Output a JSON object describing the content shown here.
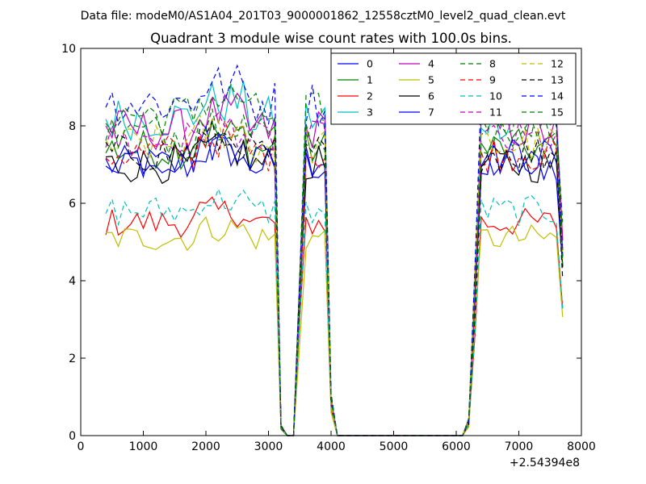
{
  "chart_data": {
    "type": "line",
    "suptitle": "Data file: modeM0/AS1A04_201T03_9000001862_12558cztM0_level2_quad_clean.evt",
    "title": "Quadrant 3 module wise count rates with 100.0s bins.",
    "xlabel": "",
    "ylabel": "",
    "x_offset_label": "+2.54394e8",
    "xlim": [
      0,
      8000
    ],
    "ylim": [
      0,
      10
    ],
    "xticks": [
      0,
      1000,
      2000,
      3000,
      4000,
      5000,
      6000,
      7000,
      8000
    ],
    "yticks": [
      0,
      2,
      4,
      6,
      8,
      10
    ],
    "xtick_labels": [
      "0",
      "1000",
      "2000",
      "3000",
      "4000",
      "5000",
      "6000",
      "7000",
      "8000"
    ],
    "ytick_labels": [
      "0",
      "2",
      "4",
      "6",
      "8",
      "10"
    ],
    "grid": false,
    "legend_position": "top-right",
    "legend_columns": 4,
    "series": [
      {
        "name": "0",
        "color": "#0000ff",
        "dash": "solid",
        "level": 7.0
      },
      {
        "name": "1",
        "color": "#008000",
        "dash": "solid",
        "level": 7.4
      },
      {
        "name": "2",
        "color": "#ff0000",
        "dash": "solid",
        "level": 5.5
      },
      {
        "name": "3",
        "color": "#00bfbf",
        "dash": "solid",
        "level": 8.2
      },
      {
        "name": "4",
        "color": "#bf00bf",
        "dash": "solid",
        "level": 7.9
      },
      {
        "name": "5",
        "color": "#bfbf00",
        "dash": "solid",
        "level": 5.1
      },
      {
        "name": "6",
        "color": "#000000",
        "dash": "solid",
        "level": 7.0
      },
      {
        "name": "7",
        "color": "#0000ff",
        "dash": "solid",
        "level": 7.2
      },
      {
        "name": "8",
        "color": "#008000",
        "dash": "dashed",
        "level": 8.3
      },
      {
        "name": "9",
        "color": "#ff0000",
        "dash": "dashed",
        "level": 7.3
      },
      {
        "name": "10",
        "color": "#00bfbf",
        "dash": "dashed",
        "level": 5.8
      },
      {
        "name": "11",
        "color": "#bf00bf",
        "dash": "dashed",
        "level": 7.6
      },
      {
        "name": "12",
        "color": "#bfbf00",
        "dash": "dashed",
        "level": 7.5
      },
      {
        "name": "13",
        "color": "#000000",
        "dash": "dashed",
        "level": 7.3
      },
      {
        "name": "14",
        "color": "#0000ff",
        "dash": "dashed",
        "level": 8.6
      },
      {
        "name": "15",
        "color": "#008000",
        "dash": "dashed",
        "level": 7.8
      }
    ],
    "x": [
      400,
      500,
      600,
      700,
      800,
      900,
      1000,
      1100,
      1200,
      1300,
      1400,
      1500,
      1600,
      1700,
      1800,
      1900,
      2000,
      2100,
      2200,
      2300,
      2400,
      2500,
      2600,
      2700,
      2800,
      2900,
      3000,
      3100,
      3200,
      3300,
      3400,
      3500,
      3600,
      3700,
      3800,
      3900,
      4000,
      4100,
      4200,
      4300,
      4400,
      4500,
      4600,
      4700,
      4800,
      4900,
      5000,
      5100,
      5200,
      5300,
      5400,
      5500,
      5600,
      5700,
      5800,
      5900,
      6000,
      6100,
      6200,
      6300,
      6400,
      6500,
      6600,
      6700,
      6800,
      6900,
      7000,
      7100,
      7200,
      7300,
      7400,
      7500,
      7600,
      7700
    ],
    "coverage_profile": [
      1,
      1,
      1,
      1,
      1,
      1,
      1,
      1,
      1,
      1,
      1,
      1,
      1,
      1,
      1,
      1,
      1,
      1,
      1,
      1,
      1,
      1,
      1,
      1,
      1,
      1,
      1,
      1,
      0.03,
      0,
      0,
      0.5,
      1,
      1,
      1,
      1,
      0.12,
      0,
      0,
      0,
      0,
      0,
      0,
      0,
      0,
      0,
      0,
      0,
      0,
      0,
      0,
      0,
      0,
      0,
      0,
      0,
      0,
      0,
      0.05,
      0.5,
      1,
      1,
      1,
      1,
      1,
      1,
      1,
      1,
      1,
      1,
      1,
      1,
      1,
      0.6
    ]
  }
}
